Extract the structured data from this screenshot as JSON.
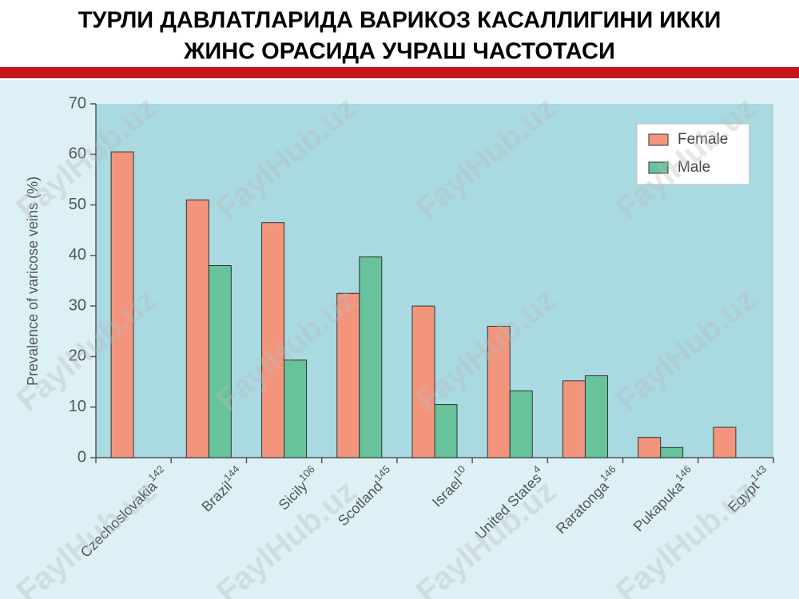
{
  "chart_data": {
    "type": "bar",
    "title": [
      "ТУРЛИ ДАВЛАТЛАРИДА ВАРИКОЗ КАСАЛЛИГИНИ ИККИ",
      "ЖИНС ОРАСИДА УЧРАШ ЧАСТОТАСИ"
    ],
    "y_label": "Prevalence of varicose veins (%)",
    "categories": [
      "Czechoslovakia",
      "Brazil",
      "Sicily",
      "Scotland",
      "Israel",
      "United States",
      "Raratonga",
      "Pukapuka",
      "Egypt"
    ],
    "category_refs": [
      "142",
      "144",
      "106",
      "145",
      "10",
      "4",
      "146",
      "146",
      "143"
    ],
    "series": [
      {
        "name": "Female",
        "color": "#f2957c",
        "values": [
          60.5,
          51,
          46.5,
          32.5,
          30,
          26,
          15.2,
          4,
          6
        ]
      },
      {
        "name": "Male",
        "color": "#66c39b",
        "values": [
          null,
          38,
          19.3,
          39.7,
          10.5,
          13.2,
          16.2,
          2,
          null
        ]
      }
    ],
    "ylim": [
      0,
      70
    ],
    "yticks": [
      0,
      10,
      20,
      30,
      40,
      50,
      60,
      70
    ],
    "legend": "upper right",
    "watermark": "FaylHub.uz"
  }
}
